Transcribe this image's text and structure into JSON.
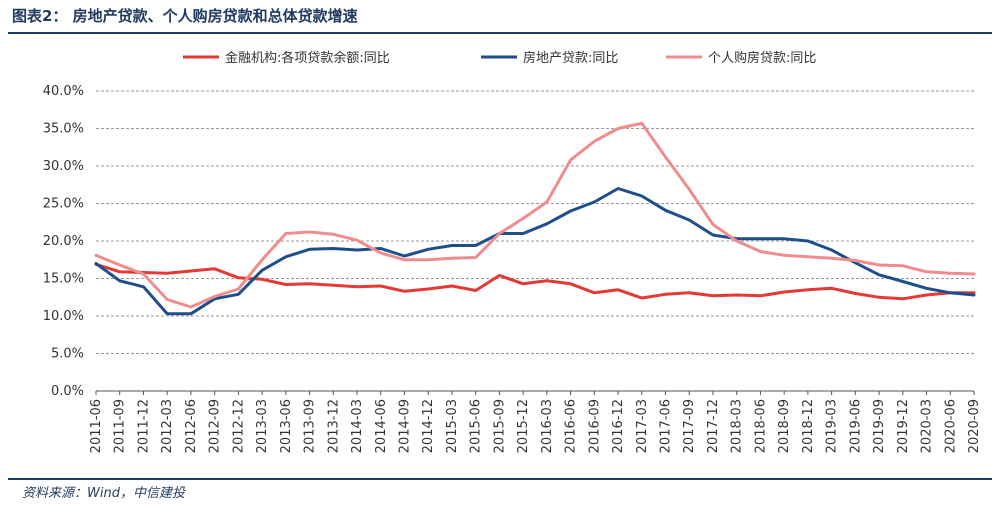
{
  "title": "图表2：  房地产贷款、个人购房贷款和总体贷款增速",
  "source": "资料来源：Wind，中信建投",
  "colors": {
    "frame": "#1f3a5f",
    "grid": "#9a9a9a",
    "series": [
      "#e53935",
      "#1f4e8c",
      "#f08c8c"
    ]
  },
  "chart_data": {
    "type": "line",
    "title": "",
    "xlabel": "",
    "ylabel": "",
    "ylim": [
      0,
      40
    ],
    "yticks": [
      "0.0%",
      "5.0%",
      "10.0%",
      "15.0%",
      "20.0%",
      "25.0%",
      "30.0%",
      "35.0%",
      "40.0%"
    ],
    "ytick_values": [
      0,
      5,
      10,
      15,
      20,
      25,
      30,
      35,
      40
    ],
    "grid": "horizontal",
    "legend_position": "top",
    "categories": [
      "2011-06",
      "2011-09",
      "2011-12",
      "2012-03",
      "2012-06",
      "2012-09",
      "2012-12",
      "2013-03",
      "2013-06",
      "2013-09",
      "2013-12",
      "2014-03",
      "2014-06",
      "2014-09",
      "2014-12",
      "2015-03",
      "2015-06",
      "2015-09",
      "2015-12",
      "2016-03",
      "2016-06",
      "2016-09",
      "2016-12",
      "2017-03",
      "2017-06",
      "2017-09",
      "2017-12",
      "2018-03",
      "2018-06",
      "2018-09",
      "2018-12",
      "2019-03",
      "2019-06",
      "2019-09",
      "2019-12",
      "2020-03",
      "2020-06",
      "2020-09"
    ],
    "series": [
      {
        "name": "金融机构:各项贷款余额:同比",
        "values": [
          16.9,
          15.9,
          15.8,
          15.7,
          16.0,
          16.3,
          15.1,
          14.9,
          14.2,
          14.3,
          14.1,
          13.9,
          14.0,
          13.3,
          13.6,
          14.0,
          13.4,
          15.4,
          14.3,
          14.7,
          14.3,
          13.1,
          13.5,
          12.4,
          12.9,
          13.1,
          12.7,
          12.8,
          12.7,
          13.2,
          13.5,
          13.7,
          13.0,
          12.5,
          12.3,
          12.8,
          13.1,
          13.1
        ]
      },
      {
        "name": "房地产贷款:同比",
        "values": [
          17.0,
          14.7,
          13.9,
          10.3,
          10.3,
          12.3,
          12.9,
          16.1,
          17.9,
          18.9,
          19.0,
          18.8,
          19.0,
          18.0,
          18.9,
          19.4,
          19.4,
          21.0,
          21.0,
          22.3,
          24.0,
          25.2,
          27.0,
          26.0,
          24.1,
          22.8,
          20.8,
          20.3,
          20.3,
          20.3,
          20.0,
          18.8,
          17.1,
          15.5,
          14.6,
          13.7,
          13.1,
          12.8
        ]
      },
      {
        "name": "个人购房贷款:同比",
        "values": [
          18.1,
          16.8,
          15.6,
          12.2,
          11.2,
          12.6,
          13.6,
          17.5,
          21.0,
          21.2,
          20.9,
          20.1,
          18.4,
          17.5,
          17.5,
          17.7,
          17.8,
          21.0,
          23.0,
          25.2,
          30.8,
          33.3,
          35.0,
          35.7,
          31.2,
          26.9,
          22.2,
          20.0,
          18.6,
          18.1,
          17.9,
          17.7,
          17.4,
          16.8,
          16.7,
          15.9,
          15.7,
          15.6
        ]
      }
    ]
  }
}
